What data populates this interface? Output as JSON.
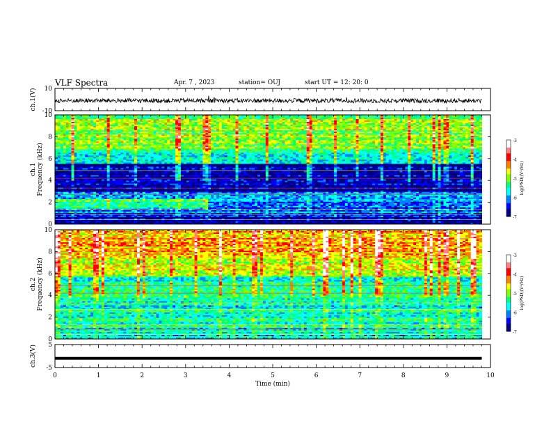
{
  "header": {
    "title": "VLF Spectra",
    "date": "Apr. 7  , 2023",
    "station": "station= OUJ",
    "start_time": "start  UT  =   12: 20: 0"
  },
  "chart_data": [
    {
      "type": "line",
      "panel": "ch1-waveform",
      "ylabel": "ch.1(V)",
      "ylim": [
        -10,
        10
      ],
      "ytick_labels": [
        "10",
        "-10"
      ],
      "description_values": {
        "center": -1,
        "amplitude": 2
      }
    },
    {
      "type": "heatmap",
      "panel": "ch1-spectrogram",
      "ylabel": "ch.1\nFrequency  (kHz)",
      "ylim": [
        0,
        10
      ],
      "ytick_labels": [
        "0",
        "2",
        "4",
        "6",
        "8",
        "10"
      ],
      "colorbar": {
        "label": "log(PSD)(V²/Hz)",
        "range": [
          -7,
          -3
        ],
        "tick_labels": [
          "-3",
          "-4",
          "-5",
          "-6",
          "-7"
        ]
      }
    },
    {
      "type": "heatmap",
      "panel": "ch2-spectrogram",
      "ylabel": "ch.2\nFrequency  (kHz)",
      "ylim": [
        0,
        10
      ],
      "ytick_labels": [
        "0",
        "2",
        "4",
        "6",
        "8",
        "10"
      ],
      "colorbar": {
        "label": "log(PSD)(V²/Hz)",
        "range": [
          -7,
          -3
        ],
        "tick_labels": [
          "-3",
          "-4",
          "-5",
          "-6",
          "-7"
        ]
      }
    },
    {
      "type": "line",
      "panel": "ch3-waveform",
      "ylabel": "ch.3(V)",
      "ylim": [
        -5,
        5
      ],
      "ytick_labels": [
        "5",
        "-5"
      ],
      "values": [
        [
          0,
          -1.0
        ],
        [
          9.8,
          -1.0
        ]
      ]
    }
  ],
  "x_axis": {
    "label": "Time  (min)",
    "range": [
      0,
      10
    ],
    "tick_labels": [
      "0",
      "1",
      "2",
      "3",
      "4",
      "5",
      "6",
      "7",
      "8",
      "9",
      "10"
    ],
    "data_end": 9.8
  },
  "colormap": [
    "#00007f",
    "#0000ff",
    "#0080ff",
    "#00ffff",
    "#00ff80",
    "#80ff00",
    "#ffff00",
    "#ff8000",
    "#ff0000",
    "#ff8080",
    "#ffffff"
  ]
}
